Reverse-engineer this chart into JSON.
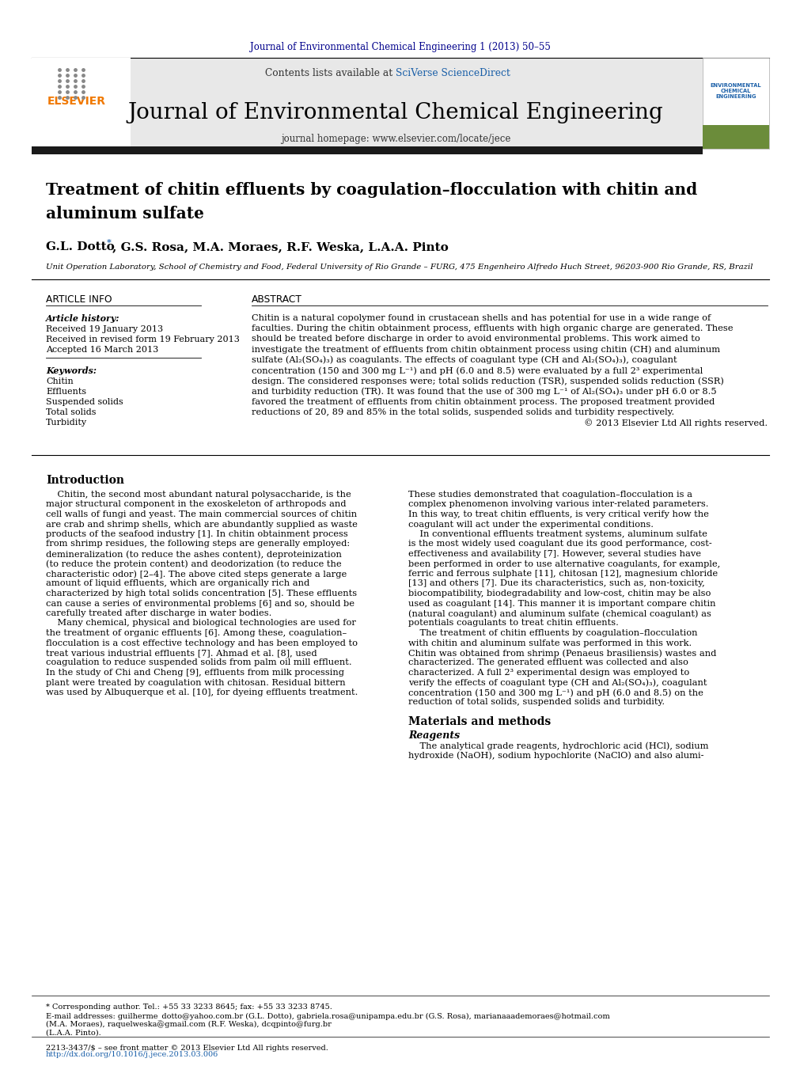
{
  "journal_ref": "Journal of Environmental Chemical Engineering 1 (2013) 50–55",
  "contents_line": "Contents lists available at SciVerse ScienceDirect",
  "journal_name": "Journal of Environmental Chemical Engineering",
  "journal_homepage": "journal homepage: www.elsevier.com/locate/jece",
  "paper_title": "Treatment of chitin effluents by coagulation–flocculation with chitin and\naluminum sulfate",
  "authors": "G.L. Dotto *, G.S. Rosa, M.A. Moraes, R.F. Weska, L.A.A. Pinto",
  "affiliation": "Unit Operation Laboratory, School of Chemistry and Food, Federal University of Rio Grande – FURG, 475 Engenheiro Alfredo Huch Street, 96203-900 Rio Grande, RS, Brazil",
  "article_info_label": "ARTICLE INFO",
  "abstract_label": "ABSTRACT",
  "article_history_label": "Article history:",
  "received1": "Received 19 January 2013",
  "received2": "Received in revised form 19 February 2013",
  "accepted": "Accepted 16 March 2013",
  "keywords_label": "Keywords:",
  "keywords": [
    "Chitin",
    "Effluents",
    "Suspended solids",
    "Total solids",
    "Turbidity"
  ],
  "intro_title": "Introduction",
  "methods_title": "Materials and methods",
  "reagents_title": "Reagents",
  "footnote_corr": "* Corresponding author. Tel.: +55 33 3233 8645; fax: +55 33 3233 8745.",
  "footnote_email1": "E-mail addresses: guilherme_dotto@yahoo.com.br (G.L. Dotto), gabriela.rosa@unipampa.edu.br (G.S. Rosa), marianaaademoraes@hotmail.com",
  "footnote_email2": "(M.A. Moraes), raquelweska@gmail.com (R.F. Weska), dcqpinto@furg.br",
  "footnote_email3": "(L.A.A. Pinto).",
  "issn_line": "2213-3437/$ – see front matter © 2013 Elsevier Ltd All rights reserved.",
  "doi_line": "http://dx.doi.org/10.1016/j.jece.2013.03.006",
  "bg_color": "#ffffff",
  "header_bg": "#e8e8e8",
  "black_bar_color": "#1a1a1a",
  "elsevier_orange": "#f07800",
  "sciverse_blue": "#1a5fa8",
  "journal_ref_color": "#00008B"
}
